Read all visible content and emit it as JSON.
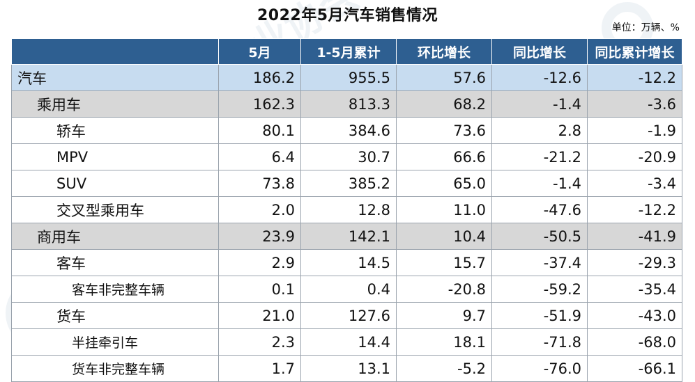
{
  "title": "2022年5月汽车销售情况",
  "unit": "单位：万辆、%",
  "watermark": "中国汽车工业协会",
  "table": {
    "headers": [
      "",
      "5月",
      "1-5月累计",
      "环比增长",
      "同比增长",
      "同比累计增长"
    ],
    "rows": [
      {
        "level": 0,
        "cells": [
          "汽车",
          "186.2",
          "955.5",
          "57.6",
          "-12.6",
          "-12.2"
        ]
      },
      {
        "level": 1,
        "cells": [
          "乘用车",
          "162.3",
          "813.3",
          "68.2",
          "-1.4",
          "-3.6"
        ]
      },
      {
        "level": 2,
        "cells": [
          "轿车",
          "80.1",
          "384.6",
          "73.6",
          "2.8",
          "-1.9"
        ]
      },
      {
        "level": 2,
        "cells": [
          "MPV",
          "6.4",
          "30.7",
          "66.6",
          "-21.2",
          "-20.9"
        ]
      },
      {
        "level": 2,
        "cells": [
          "SUV",
          "73.8",
          "385.2",
          "65.0",
          "-1.4",
          "-3.4"
        ]
      },
      {
        "level": 2,
        "cells": [
          "交叉型乘用车",
          "2.0",
          "12.8",
          "11.0",
          "-47.6",
          "-12.2"
        ]
      },
      {
        "level": 1,
        "cells": [
          "商用车",
          "23.9",
          "142.1",
          "10.4",
          "-50.5",
          "-41.9"
        ]
      },
      {
        "level": 2,
        "cells": [
          "客车",
          "2.9",
          "14.5",
          "15.7",
          "-37.4",
          "-29.3"
        ]
      },
      {
        "level": 3,
        "cells": [
          "客车非完整车辆",
          "0.1",
          "0.4",
          "-20.8",
          "-59.2",
          "-35.4"
        ]
      },
      {
        "level": 2,
        "cells": [
          "货车",
          "21.0",
          "127.6",
          "9.7",
          "-51.9",
          "-43.0"
        ]
      },
      {
        "level": 3,
        "cells": [
          "半挂牵引车",
          "2.3",
          "14.4",
          "18.1",
          "-71.8",
          "-68.0"
        ]
      },
      {
        "level": 3,
        "cells": [
          "货车非完整车辆",
          "1.7",
          "13.1",
          "-5.2",
          "-76.0",
          "-66.1"
        ]
      }
    ]
  },
  "colors": {
    "header_bg": "#2e5f91",
    "header_text": "#ffffff",
    "total_row_bg": "#c7dcf0",
    "subtotal_row_bg": "#d7d7d7",
    "border": "#9aa3ad"
  }
}
